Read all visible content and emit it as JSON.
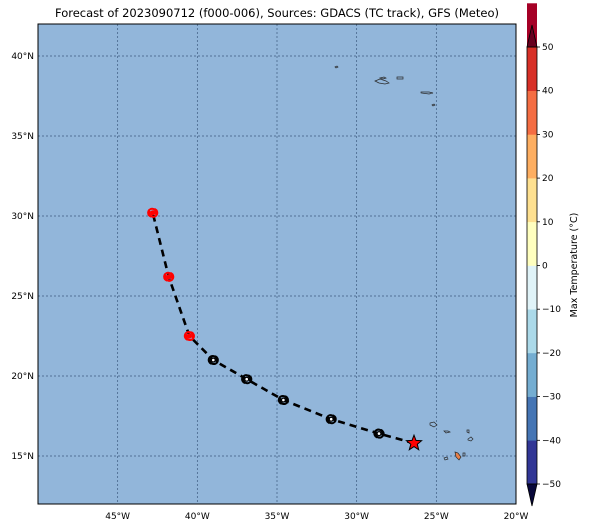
{
  "title": "Forecast of 2023090712 (f000-006), Sources: GDACS (TC track), GFS (Meteo)",
  "map": {
    "ocean_color": "#92b6da",
    "grid_color": "#3c5a80",
    "lon_range": [
      -50,
      -20
    ],
    "lat_range": [
      12,
      42
    ],
    "lon_ticks": [
      {
        "value": -45,
        "label": "45°W"
      },
      {
        "value": -40,
        "label": "40°W"
      },
      {
        "value": -35,
        "label": "35°W"
      },
      {
        "value": -30,
        "label": "30°W"
      },
      {
        "value": -25,
        "label": "25°W"
      },
      {
        "value": -20,
        "label": "20°W"
      }
    ],
    "lat_ticks": [
      {
        "value": 15,
        "label": "15°N"
      },
      {
        "value": 20,
        "label": "20°N"
      },
      {
        "value": 25,
        "label": "25°N"
      },
      {
        "value": 30,
        "label": "30°N"
      },
      {
        "value": 35,
        "label": "35°N"
      },
      {
        "value": 40,
        "label": "40°N"
      }
    ]
  },
  "track": {
    "line_style": "dashed",
    "current_position": {
      "lon": -26.4,
      "lat": 15.8,
      "marker": "star-icon",
      "color": "#ff0000"
    },
    "points": [
      {
        "lon": -28.6,
        "lat": 16.4,
        "color": "#000000",
        "icon": "hurricane-icon"
      },
      {
        "lon": -31.6,
        "lat": 17.3,
        "color": "#000000",
        "icon": "hurricane-icon"
      },
      {
        "lon": -34.6,
        "lat": 18.5,
        "color": "#000000",
        "icon": "hurricane-icon"
      },
      {
        "lon": -36.9,
        "lat": 19.8,
        "color": "#000000",
        "icon": "hurricane-icon"
      },
      {
        "lon": -39.0,
        "lat": 21.0,
        "color": "#000000",
        "icon": "hurricane-icon"
      },
      {
        "lon": -40.5,
        "lat": 22.5,
        "color": "#ff0000",
        "icon": "hurricane-icon"
      },
      {
        "lon": -41.8,
        "lat": 26.2,
        "color": "#ff0000",
        "icon": "hurricane-icon"
      },
      {
        "lon": -42.8,
        "lat": 30.2,
        "color": "#ff0000",
        "icon": "hurricane-icon"
      }
    ]
  },
  "colorbar": {
    "label": "Max Temperature (°C)",
    "levels": [
      -50,
      -40,
      -30,
      -20,
      -10,
      0,
      10,
      20,
      30,
      40,
      50
    ],
    "tick_labels": [
      "−50",
      "−40",
      "−30",
      "−20",
      "−10",
      "0",
      "10",
      "20",
      "30",
      "40",
      "50"
    ],
    "colors": [
      "#313695",
      "#4575b4",
      "#74add1",
      "#abd9e9",
      "#e0f3f8",
      "#ffffbf",
      "#fee090",
      "#fdae61",
      "#f46d43",
      "#d73027",
      "#a50026"
    ],
    "under_color": "#08083a",
    "over_color": "#67001f"
  }
}
